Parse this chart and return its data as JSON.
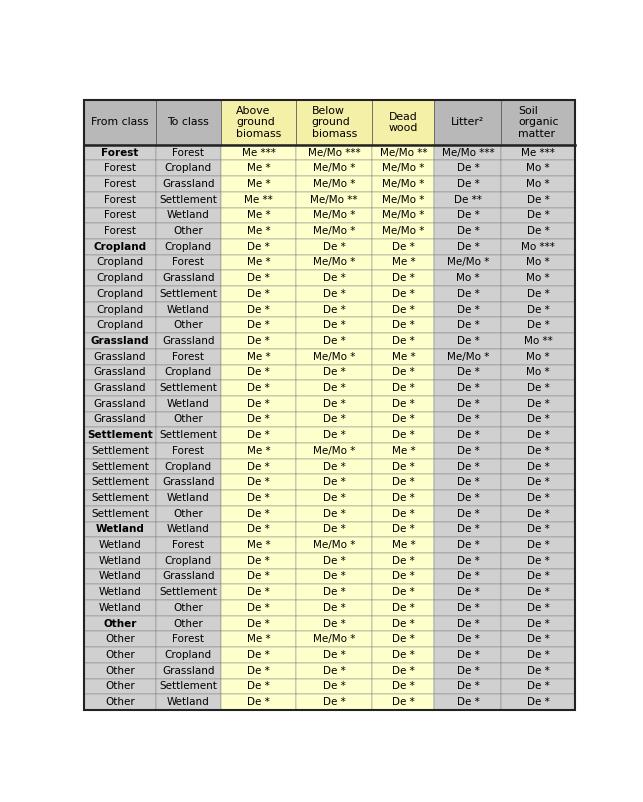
{
  "col_headers": [
    "From class",
    "To class",
    "Above\nground\nbiomass",
    "Below\nground\nbiomass",
    "Dead\nwood",
    "Litter²",
    "Soil\norganic\nmatter"
  ],
  "rows": [
    [
      "Forest",
      "Forest",
      "Me ***",
      "Me/Mo ***",
      "Me/Mo **",
      "Me/Mo ***",
      "Me ***"
    ],
    [
      "Forest",
      "Cropland",
      "Me *",
      "Me/Mo *",
      "Me/Mo *",
      "De *",
      "Mo *"
    ],
    [
      "Forest",
      "Grassland",
      "Me *",
      "Me/Mo *",
      "Me/Mo *",
      "De *",
      "Mo *"
    ],
    [
      "Forest",
      "Settlement",
      "Me **",
      "Me/Mo **",
      "Me/Mo *",
      "De **",
      "De *"
    ],
    [
      "Forest",
      "Wetland",
      "Me *",
      "Me/Mo *",
      "Me/Mo *",
      "De *",
      "De *"
    ],
    [
      "Forest",
      "Other",
      "Me *",
      "Me/Mo *",
      "Me/Mo *",
      "De *",
      "De *"
    ],
    [
      "Cropland",
      "Cropland",
      "De *",
      "De *",
      "De *",
      "De *",
      "Mo ***"
    ],
    [
      "Cropland",
      "Forest",
      "Me *",
      "Me/Mo *",
      "Me *",
      "Me/Mo *",
      "Mo *"
    ],
    [
      "Cropland",
      "Grassland",
      "De *",
      "De *",
      "De *",
      "Mo *",
      "Mo *"
    ],
    [
      "Cropland",
      "Settlement",
      "De *",
      "De *",
      "De *",
      "De *",
      "De *"
    ],
    [
      "Cropland",
      "Wetland",
      "De *",
      "De *",
      "De *",
      "De *",
      "De *"
    ],
    [
      "Cropland",
      "Other",
      "De *",
      "De *",
      "De *",
      "De *",
      "De *"
    ],
    [
      "Grassland",
      "Grassland",
      "De *",
      "De *",
      "De *",
      "De *",
      "Mo **"
    ],
    [
      "Grassland",
      "Forest",
      "Me *",
      "Me/Mo *",
      "Me *",
      "Me/Mo *",
      "Mo *"
    ],
    [
      "Grassland",
      "Cropland",
      "De *",
      "De *",
      "De *",
      "De *",
      "Mo *"
    ],
    [
      "Grassland",
      "Settlement",
      "De *",
      "De *",
      "De *",
      "De *",
      "De *"
    ],
    [
      "Grassland",
      "Wetland",
      "De *",
      "De *",
      "De *",
      "De *",
      "De *"
    ],
    [
      "Grassland",
      "Other",
      "De *",
      "De *",
      "De *",
      "De *",
      "De *"
    ],
    [
      "Settlement",
      "Settlement",
      "De *",
      "De *",
      "De *",
      "De *",
      "De *"
    ],
    [
      "Settlement",
      "Forest",
      "Me *",
      "Me/Mo *",
      "Me *",
      "De *",
      "De *"
    ],
    [
      "Settlement",
      "Cropland",
      "De *",
      "De *",
      "De *",
      "De *",
      "De *"
    ],
    [
      "Settlement",
      "Grassland",
      "De *",
      "De *",
      "De *",
      "De *",
      "De *"
    ],
    [
      "Settlement",
      "Wetland",
      "De *",
      "De *",
      "De *",
      "De *",
      "De *"
    ],
    [
      "Settlement",
      "Other",
      "De *",
      "De *",
      "De *",
      "De *",
      "De *"
    ],
    [
      "Wetland",
      "Wetland",
      "De *",
      "De *",
      "De *",
      "De *",
      "De *"
    ],
    [
      "Wetland",
      "Forest",
      "Me *",
      "Me/Mo *",
      "Me *",
      "De *",
      "De *"
    ],
    [
      "Wetland",
      "Cropland",
      "De *",
      "De *",
      "De *",
      "De *",
      "De *"
    ],
    [
      "Wetland",
      "Grassland",
      "De *",
      "De *",
      "De *",
      "De *",
      "De *"
    ],
    [
      "Wetland",
      "Settlement",
      "De *",
      "De *",
      "De *",
      "De *",
      "De *"
    ],
    [
      "Wetland",
      "Other",
      "De *",
      "De *",
      "De *",
      "De *",
      "De *"
    ],
    [
      "Other",
      "Other",
      "De *",
      "De *",
      "De *",
      "De *",
      "De *"
    ],
    [
      "Other",
      "Forest",
      "Me *",
      "Me/Mo *",
      "De *",
      "De *",
      "De *"
    ],
    [
      "Other",
      "Cropland",
      "De *",
      "De *",
      "De *",
      "De *",
      "De *"
    ],
    [
      "Other",
      "Grassland",
      "De *",
      "De *",
      "De *",
      "De *",
      "De *"
    ],
    [
      "Other",
      "Settlement",
      "De *",
      "De *",
      "De *",
      "De *",
      "De *"
    ],
    [
      "Other",
      "Wetland",
      "De *",
      "De *",
      "De *",
      "De *",
      "De *"
    ]
  ],
  "bold_rows": [
    0,
    6,
    12,
    18,
    24,
    30
  ],
  "yellow_cols": [
    2,
    3,
    4
  ],
  "grey_cols": [
    0,
    1,
    5,
    6
  ],
  "header_yellow": "#f5f0a8",
  "header_grey": "#b8b8b8",
  "row_yellow": "#ffffcc",
  "row_grey": "#d0d0d0",
  "figsize": [
    6.43,
    8.02
  ],
  "dpi": 100
}
